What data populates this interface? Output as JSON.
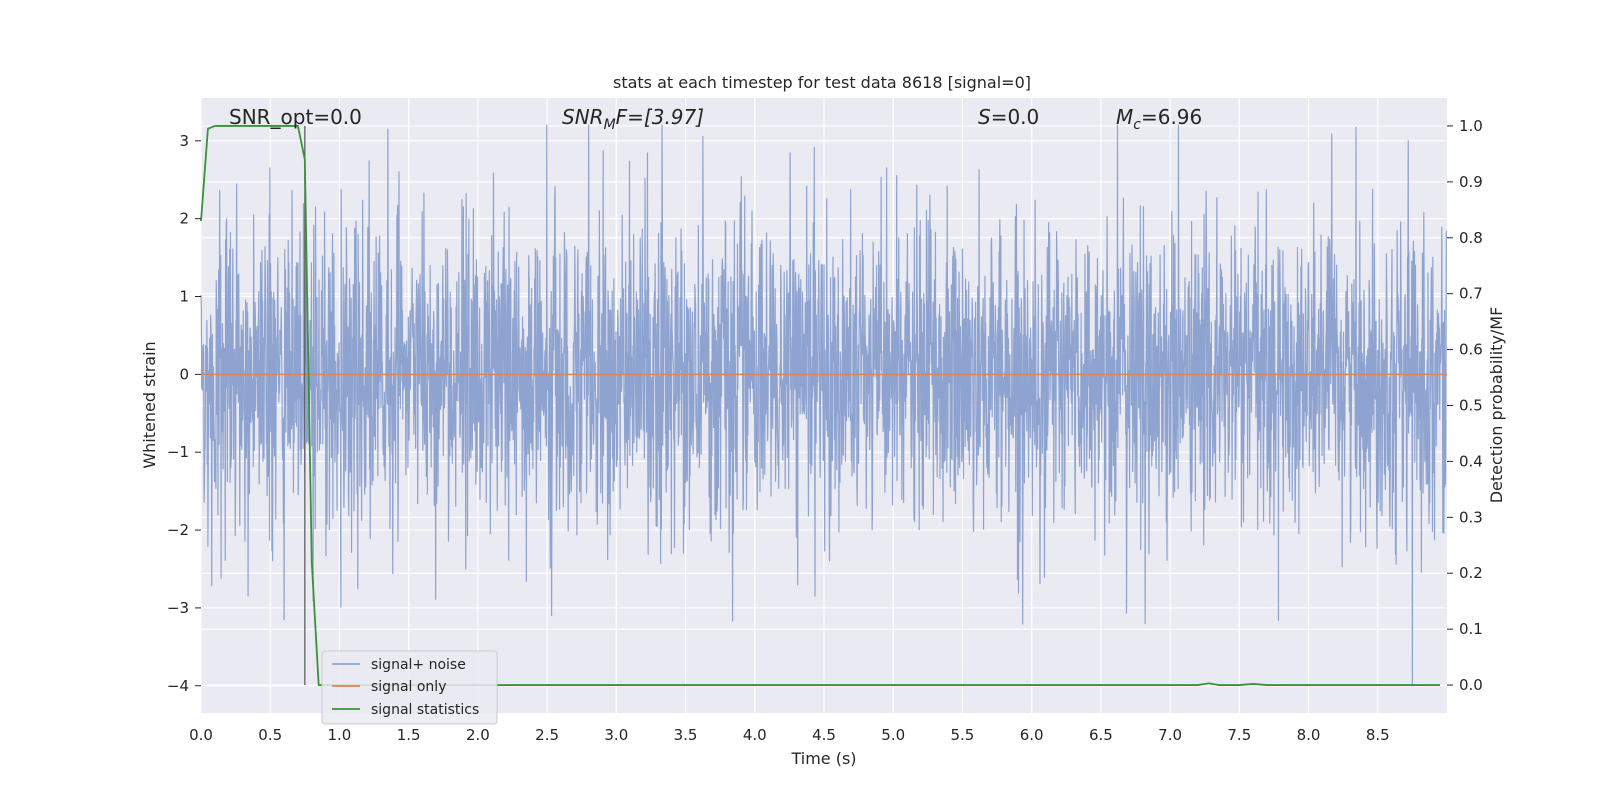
{
  "chart_data": {
    "type": "line",
    "title": "stats at each timestep for test data 8618 [signal=0]",
    "xlabel": "Time (s)",
    "ylabel": "Whitened strain",
    "y2label": "Detection probability/MF",
    "xlim": [
      0.0,
      9.0
    ],
    "ylim": [
      -4.35,
      3.55
    ],
    "y2lim": [
      -0.05,
      1.05
    ],
    "xticks": [
      0.0,
      0.5,
      1.0,
      1.5,
      2.0,
      2.5,
      3.0,
      3.5,
      4.0,
      4.5,
      5.0,
      5.5,
      6.0,
      6.5,
      7.0,
      7.5,
      8.0,
      8.5
    ],
    "xtick_labels": [
      "0.0",
      "0.5",
      "1.0",
      "1.5",
      "2.0",
      "2.5",
      "3.0",
      "3.5",
      "4.0",
      "4.5",
      "5.0",
      "5.5",
      "6.0",
      "6.5",
      "7.0",
      "7.5",
      "8.0",
      "8.5"
    ],
    "yticks": [
      -4,
      -3,
      -2,
      -1,
      0,
      1,
      2,
      3
    ],
    "ytick_labels": [
      "−4",
      "−3",
      "−2",
      "−1",
      "0",
      "1",
      "2",
      "3"
    ],
    "y2ticks": [
      0.0,
      0.1,
      0.2,
      0.3,
      0.4,
      0.5,
      0.6,
      0.7,
      0.8,
      0.9,
      1.0
    ],
    "y2tick_labels": [
      "0.0",
      "0.1",
      "0.2",
      "0.3",
      "0.4",
      "0.5",
      "0.6",
      "0.7",
      "0.8",
      "0.9",
      "1.0"
    ],
    "grid": true,
    "legend_position": "lower-left",
    "annotations": {
      "snr_opt": "SNR_opt=0.0",
      "snr_mf_main": "SNR",
      "snr_mf_sub": "M",
      "snr_mf_rest": "F=[3.97]",
      "s_main": "S",
      "s_rest": "=0.0",
      "mc_main": "M",
      "mc_sub": "c",
      "mc_rest": "=6.96"
    },
    "vertical_marker_x": 0.75,
    "series": [
      {
        "name": "signal+ noise",
        "axis": "left",
        "color": "#8ea3cf",
        "description_values": {
          "noise_sigma": 0.95,
          "typical_max": 3.2,
          "typical_min": -3.3,
          "sample_rate_hz": 400,
          "duration_s": 9.0,
          "extreme_dips": [
            [
              8.75,
              -4.0
            ],
            [
              2.8,
              -3.3
            ],
            [
              6.82,
              -3.2
            ],
            [
              0.6,
              -3.15
            ]
          ],
          "extreme_peaks": [
            [
              2.8,
              3.2
            ],
            [
              6.62,
              3.2
            ],
            [
              1.35,
              3.15
            ],
            [
              8.72,
              3.0
            ]
          ]
        }
      },
      {
        "name": "signal only",
        "axis": "left",
        "color": "#dd8452",
        "x": [
          0.0,
          9.0
        ],
        "y": [
          0.0,
          0.0
        ]
      },
      {
        "name": "signal statistics",
        "axis": "right",
        "color": "#3a923a",
        "x": [
          0.0,
          0.05,
          0.1,
          0.15,
          0.2,
          0.3,
          0.4,
          0.5,
          0.6,
          0.65,
          0.7,
          0.75,
          0.8,
          0.85,
          1.0,
          2.0,
          3.0,
          4.0,
          5.0,
          6.0,
          7.0,
          7.2,
          7.28,
          7.35,
          7.5,
          7.6,
          7.7,
          8.0,
          8.5,
          8.95
        ],
        "y": [
          0.83,
          0.995,
          1.0,
          1.0,
          1.0,
          1.0,
          1.0,
          1.0,
          1.0,
          1.0,
          1.0,
          0.94,
          0.22,
          0.0,
          0.0,
          0.0,
          0.0,
          0.0,
          0.0,
          0.0,
          0.0,
          0.0,
          0.003,
          0.0,
          0.0,
          0.002,
          0.0,
          0.0,
          0.0,
          0.0
        ]
      }
    ]
  }
}
